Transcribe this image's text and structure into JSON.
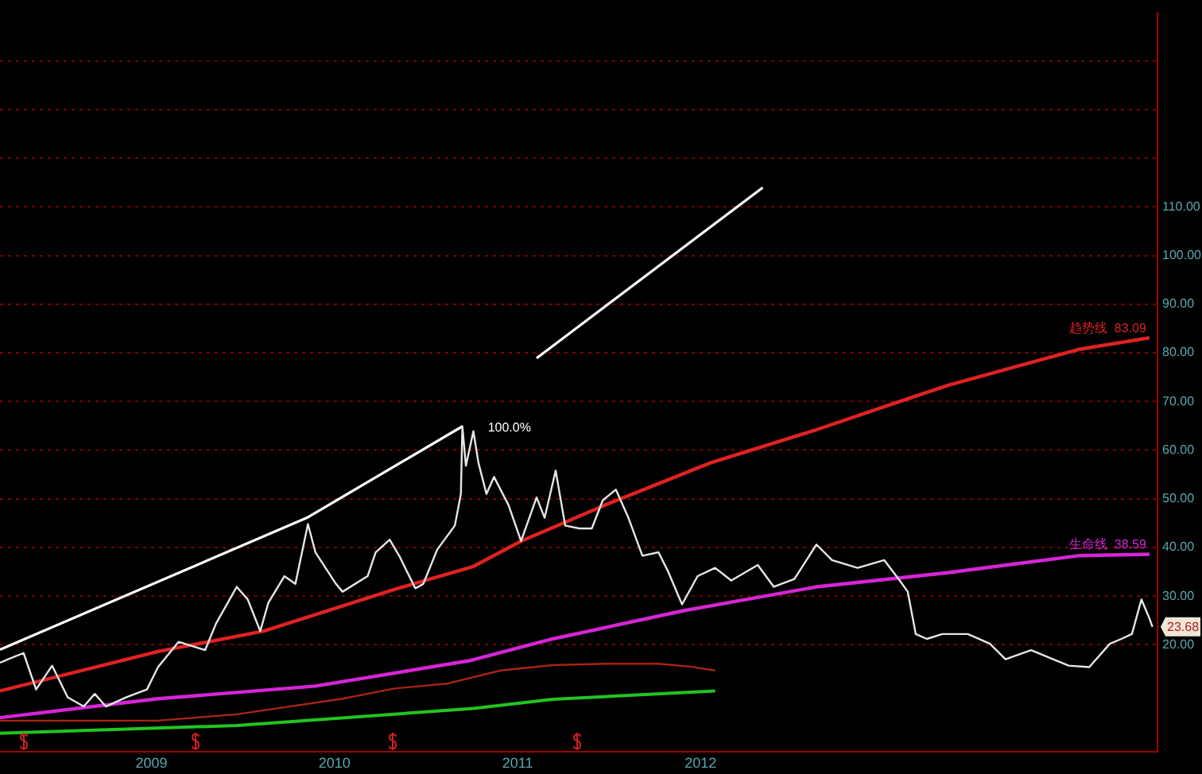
{
  "chart_data": {
    "type": "line",
    "xlim": [
      "2008-03-05",
      "2014-06-30"
    ],
    "xticks": [
      "2009",
      "2010",
      "2011",
      "2012"
    ],
    "ylim": [
      -2,
      150
    ],
    "yticks": [
      {
        "value": 20,
        "label": "20.00"
      },
      {
        "value": 30,
        "label": "30.00"
      },
      {
        "value": 40,
        "label": "40.00"
      },
      {
        "value": 50,
        "label": "50.00"
      },
      {
        "value": 60,
        "label": "60.00"
      },
      {
        "value": 70,
        "label": "70.00"
      },
      {
        "value": 80,
        "label": "80.00"
      },
      {
        "value": 90,
        "label": "90.00"
      },
      {
        "value": 100,
        "label": "100.00"
      },
      {
        "value": 110,
        "label": "110.00"
      },
      {
        "value": 120,
        "label": null
      },
      {
        "value": 130,
        "label": null
      },
      {
        "value": 140,
        "label": null
      }
    ],
    "grid": "y",
    "marker": "none",
    "line_style": "solid",
    "series": [
      {
        "color": "#e6e6e6",
        "x": [
          "2008-03-05",
          "2008-03-21",
          "2008-04-21",
          "2008-05-16",
          "2008-06-17",
          "2008-07-18",
          "2008-08-19",
          "2008-09-10",
          "2008-10-02",
          "2008-11-12",
          "2008-12-23",
          "2009-01-14",
          "2009-02-24",
          "2009-04-18",
          "2009-05-10",
          "2009-06-20",
          "2009-07-12",
          "2009-08-06",
          "2009-08-22",
          "2009-09-23",
          "2009-10-15",
          "2009-11-09",
          "2009-11-24",
          "2010-01-04",
          "2010-01-17",
          "2010-03-08",
          "2010-03-24",
          "2010-04-21",
          "2010-05-10",
          "2010-06-11",
          "2010-06-27",
          "2010-07-25",
          "2010-08-29",
          "2010-09-10",
          "2010-09-13",
          "2010-09-20",
          "2010-10-05",
          "2010-10-15",
          "2010-10-31",
          "2010-11-15",
          "2010-12-14",
          "2011-01-08",
          "2011-02-08",
          "2011-02-24",
          "2011-03-18",
          "2011-04-06",
          "2011-05-04",
          "2011-05-29",
          "2011-06-20",
          "2011-07-16",
          "2011-08-10",
          "2011-09-07",
          "2011-10-09",
          "2011-10-28",
          "2011-11-25",
          "2011-12-26",
          "2012-01-30",
          "2012-03-02",
          "2012-04-24",
          "2012-05-26",
          "2012-07-06",
          "2012-08-19",
          "2012-09-19",
          "2012-11-09",
          "2013-01-01",
          "2013-02-01",
          "2013-02-17",
          "2013-03-05",
          "2013-03-27",
          "2013-04-27",
          "2013-06-17",
          "2013-07-31",
          "2013-08-31",
          "2013-10-21",
          "2013-12-04",
          "2014-01-04",
          "2014-02-14",
          "2014-03-27",
          "2014-04-19",
          "2014-05-10",
          "2014-05-29",
          "2014-06-14",
          "2014-06-20"
        ],
        "values": [
          16.3,
          17.0,
          18.3,
          10.8,
          15.7,
          9.2,
          7.3,
          9.9,
          7.3,
          9.2,
          10.8,
          15.4,
          20.6,
          18.9,
          24.4,
          31.9,
          29.3,
          22.8,
          28.6,
          34.1,
          32.5,
          44.8,
          39.0,
          32.5,
          30.9,
          34.1,
          39.0,
          41.6,
          38.3,
          31.6,
          32.5,
          39.6,
          44.5,
          51.0,
          64.9,
          56.8,
          63.9,
          57.4,
          51.0,
          54.5,
          48.7,
          41.3,
          50.3,
          46.1,
          55.8,
          44.5,
          43.9,
          43.9,
          49.7,
          51.9,
          46.1,
          38.3,
          39.0,
          35.1,
          28.3,
          34.1,
          35.8,
          33.2,
          36.4,
          31.9,
          33.5,
          40.6,
          37.4,
          35.8,
          37.4,
          33.2,
          30.9,
          22.2,
          21.2,
          22.2,
          22.2,
          20.2,
          17.0,
          18.9,
          17.0,
          15.7,
          15.4,
          20.2,
          21.2,
          22.2,
          29.3,
          25.4,
          23.68
        ],
        "value_labels": [
          null,
          null,
          null,
          null,
          null,
          null,
          null,
          null,
          null,
          null,
          null,
          null,
          null,
          null,
          null,
          null,
          null,
          null,
          null,
          null,
          null,
          null,
          null,
          null,
          null,
          null,
          null,
          null,
          null,
          null,
          null,
          null,
          null,
          null,
          null,
          null,
          null,
          null,
          null,
          null,
          null,
          null,
          null,
          null,
          null,
          null,
          null,
          null,
          null,
          null,
          null,
          null,
          null,
          null,
          null,
          null,
          null,
          null,
          null,
          null,
          null,
          null,
          null,
          null,
          null,
          null,
          null,
          null,
          null,
          null,
          null,
          null,
          null,
          null,
          null,
          null,
          null,
          null,
          null,
          null,
          null,
          null,
          "23.68"
        ]
      },
      {
        "name": "趋势线",
        "color": "#e02222",
        "x": [
          "2008-03-05",
          "2009-01-14",
          "2009-08-13",
          "2010-05-01",
          "2010-10-05",
          "2011-01-08",
          "2011-06-24",
          "2012-01-21",
          "2012-08-19",
          "2013-01-23",
          "2013-05-07",
          "2014-01-23",
          "2014-06-14"
        ],
        "values": [
          10.5,
          18.6,
          22.8,
          31.4,
          36.1,
          41.3,
          48.7,
          57.4,
          64.2,
          69.7,
          73.3,
          80.7,
          83.09
        ],
        "value_labels": [
          null,
          null,
          null,
          null,
          null,
          null,
          null,
          null,
          null,
          null,
          null,
          null,
          "83.09"
        ]
      },
      {
        "name": "生命线",
        "color": "#d426d4",
        "x": [
          "2008-03-05",
          "2009-01-14",
          "2009-11-24",
          "2010-09-26",
          "2011-03-12",
          "2011-11-28",
          "2012-08-19",
          "2013-05-07",
          "2014-01-23",
          "2014-06-14"
        ],
        "values": [
          5.0,
          8.9,
          11.5,
          16.7,
          21.2,
          27.0,
          31.9,
          34.8,
          38.3,
          38.59
        ],
        "value_labels": [
          null,
          null,
          null,
          null,
          null,
          null,
          null,
          null,
          null,
          "38.59"
        ]
      },
      {
        "color": "#a82414",
        "x": [
          "2008-03-05",
          "2009-01-14",
          "2009-06-20",
          "2010-01-17",
          "2010-05-01",
          "2010-08-13",
          "2010-11-28",
          "2011-03-12",
          "2011-06-24",
          "2011-10-09",
          "2011-12-11",
          "2012-01-30"
        ],
        "values": [
          4.4,
          4.4,
          5.7,
          8.9,
          11.0,
          12.0,
          14.7,
          15.8,
          16.1,
          16.1,
          15.5,
          14.7
        ]
      },
      {
        "color": "#22c422",
        "x": [
          "2008-03-05",
          "2009-06-20",
          "2010-10-05",
          "2011-03-12",
          "2012-01-30"
        ],
        "values": [
          1.8,
          3.4,
          6.9,
          8.8,
          10.5
        ]
      },
      {
        "color": "#ffffff",
        "x": [
          "2008-03-05",
          "2009-11-09",
          "2010-09-13"
        ],
        "values": [
          19.0,
          46.2,
          64.9
        ]
      },
      {
        "color": "#ffffff",
        "x": [
          "2011-02-08",
          "2012-05-04"
        ],
        "values": [
          78.9,
          114.0
        ]
      }
    ],
    "annotations": [
      {
        "text": "100.0%",
        "x": "2010-09-13",
        "y": 64.9
      }
    ]
  }
}
